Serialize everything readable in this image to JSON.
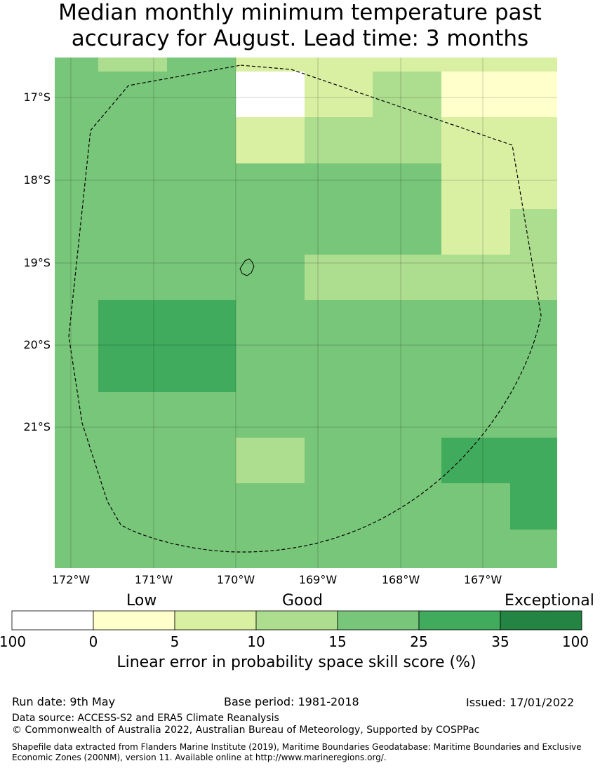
{
  "title_line1": "Median monthly minimum temperature past",
  "title_line2": "accuracy for August. Lead time: 3 months",
  "map": {
    "lat_labels": [
      "17°S",
      "18°S",
      "19°S",
      "20°S",
      "21°S"
    ],
    "lon_labels": [
      "172°W",
      "171°W",
      "170°W",
      "169°W",
      "168°W",
      "167°W"
    ],
    "grid_colors": {
      "c0": "#ffffff",
      "c1": "#ffffcc",
      "c2": "#d9f0a3",
      "c3": "#addd8e",
      "c4": "#78c679",
      "c5": "#41ab5d",
      "c6": "#238443"
    },
    "cells": [
      [
        4,
        3,
        4,
        4,
        2,
        2,
        2,
        2,
        2,
        2,
        2,
        1
      ],
      [
        4,
        4,
        4,
        4,
        0,
        2,
        3,
        3,
        1,
        1,
        1,
        1
      ],
      [
        4,
        4,
        4,
        4,
        2,
        3,
        3,
        3,
        2,
        2,
        2,
        0
      ],
      [
        4,
        4,
        4,
        4,
        4,
        4,
        4,
        2,
        2,
        2,
        2,
        2
      ],
      [
        4,
        4,
        4,
        4,
        4,
        4,
        4,
        2,
        2,
        3,
        3,
        2
      ],
      [
        4,
        4,
        4,
        4,
        4,
        3,
        3,
        3,
        3,
        3,
        3,
        3
      ],
      [
        4,
        5,
        5,
        4,
        4,
        4,
        4,
        4,
        4,
        4,
        4,
        3
      ],
      [
        4,
        5,
        5,
        4,
        4,
        4,
        4,
        4,
        4,
        4,
        4,
        4
      ],
      [
        4,
        4,
        4,
        4,
        4,
        4,
        4,
        4,
        4,
        4,
        4,
        4
      ],
      [
        4,
        4,
        4,
        4,
        3,
        4,
        4,
        5,
        5,
        5,
        5,
        5
      ],
      [
        4,
        4,
        4,
        4,
        4,
        4,
        4,
        4,
        4,
        5,
        5,
        5
      ],
      [
        4,
        4,
        4,
        4,
        4,
        4,
        4,
        4,
        4,
        4,
        4,
        5
      ]
    ]
  },
  "legend": {
    "categories": [
      "Low",
      "Good",
      "Exceptional"
    ],
    "ticks": [
      "100",
      "0",
      "5",
      "10",
      "15",
      "25",
      "35",
      "100"
    ],
    "title": "Linear error in probability space skill score (%)"
  },
  "footer": {
    "run_date": "Run date: 9th May",
    "base_period": "Base period: 1981-2018",
    "issued": "Issued: 17/01/2022",
    "data_source": "Data source: ACCESS-S2 and ERA5 Climate Reanalysis",
    "copyright": "© Commonwealth of Australia 2022, Australian Bureau of Meteorology, Supported by COSPPac",
    "shapefile": "Shapefile data extracted from Flanders Marine Institute (2019), Maritime Boundaries Geodatabase: Maritime Boundaries and Exclusive Economic Zones (200NM), version 11. Available online at http://www.marineregions.org/."
  }
}
